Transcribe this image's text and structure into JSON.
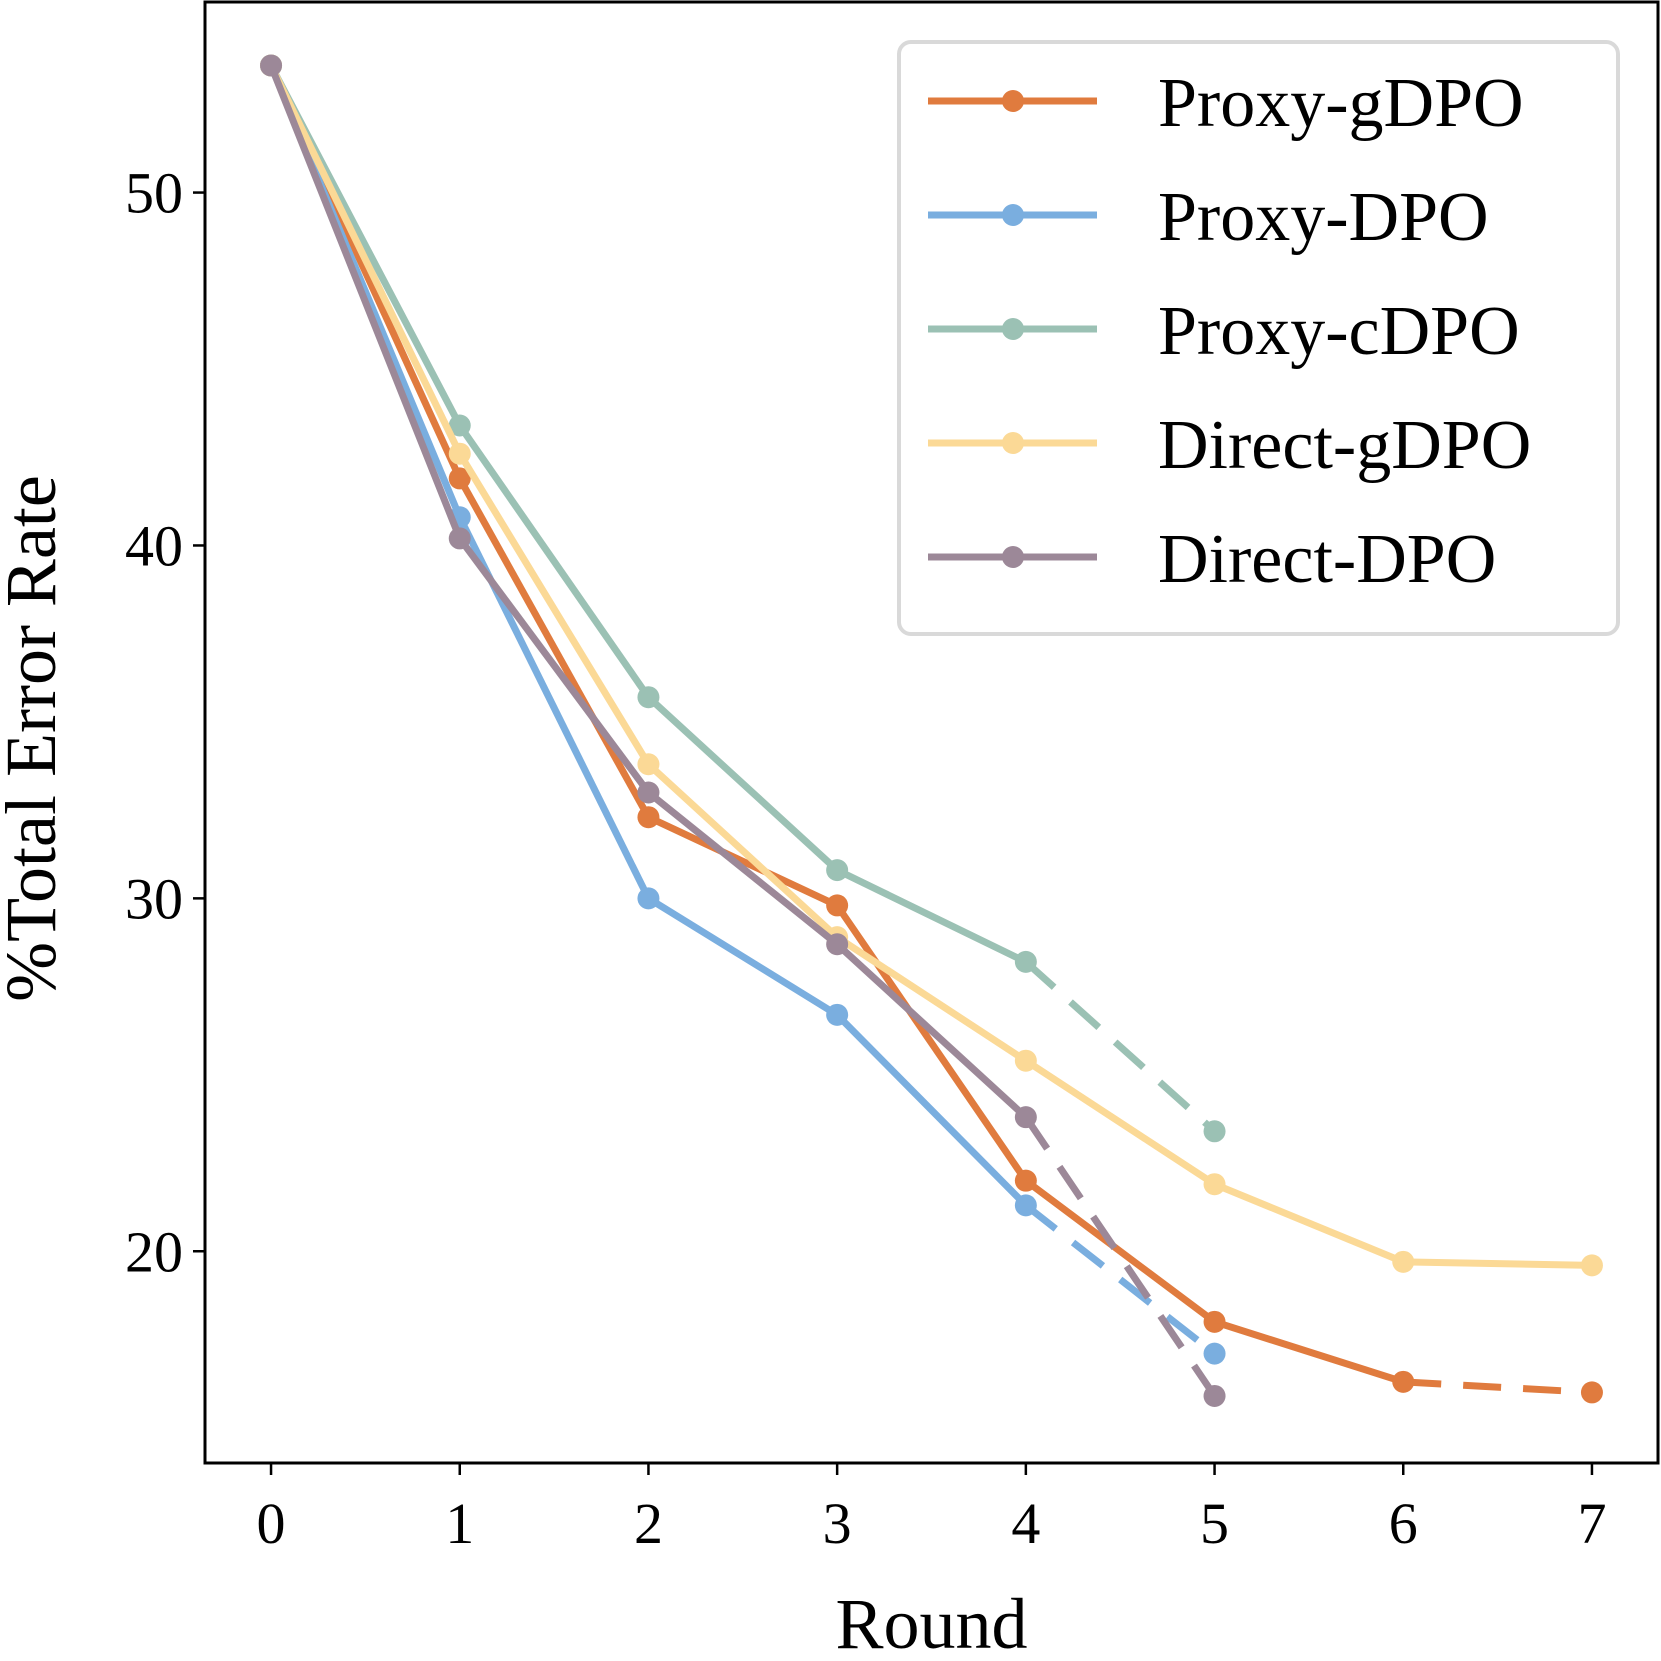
{
  "chart_data": {
    "type": "line",
    "title": "",
    "xlabel": "Round",
    "ylabel": "%Total Error Rate",
    "xlim": [
      -0.35,
      7.35
    ],
    "ylim": [
      14.0,
      55.4
    ],
    "xticks": [
      0,
      1,
      2,
      3,
      4,
      5,
      6,
      7
    ],
    "yticks": [
      20,
      30,
      40,
      50
    ],
    "grid": false,
    "legend_position": "top-right",
    "series": [
      {
        "name": "Proxy-gDPO",
        "color": "#E07B3E",
        "x": [
          0,
          1,
          2,
          3,
          4,
          5,
          6,
          7
        ],
        "y": [
          53.6,
          41.9,
          32.3,
          29.8,
          22.0,
          18.0,
          16.3,
          16.0
        ],
        "dashed_from_x": 6
      },
      {
        "name": "Proxy-DPO",
        "color": "#7AAEDF",
        "x": [
          0,
          1,
          2,
          3,
          4,
          5
        ],
        "y": [
          53.6,
          40.8,
          30.0,
          26.7,
          21.3,
          17.1
        ],
        "dashed_from_x": 4
      },
      {
        "name": "Proxy-cDPO",
        "color": "#9BC1B4",
        "x": [
          0,
          1,
          2,
          3,
          4,
          5
        ],
        "y": [
          53.6,
          43.4,
          35.7,
          30.8,
          28.2,
          23.4
        ],
        "dashed_from_x": 4
      },
      {
        "name": "Direct-gDPO",
        "color": "#FBD996",
        "x": [
          0,
          1,
          2,
          3,
          4,
          5,
          6,
          7
        ],
        "y": [
          53.6,
          42.6,
          33.8,
          28.9,
          25.4,
          21.9,
          19.7,
          19.6
        ],
        "dashed_from_x": null
      },
      {
        "name": "Direct-DPO",
        "color": "#9C8898",
        "x": [
          0,
          1,
          2,
          3,
          4,
          5
        ],
        "y": [
          53.6,
          40.2,
          33.0,
          28.7,
          23.8,
          15.9
        ],
        "dashed_from_x": 4
      }
    ]
  }
}
